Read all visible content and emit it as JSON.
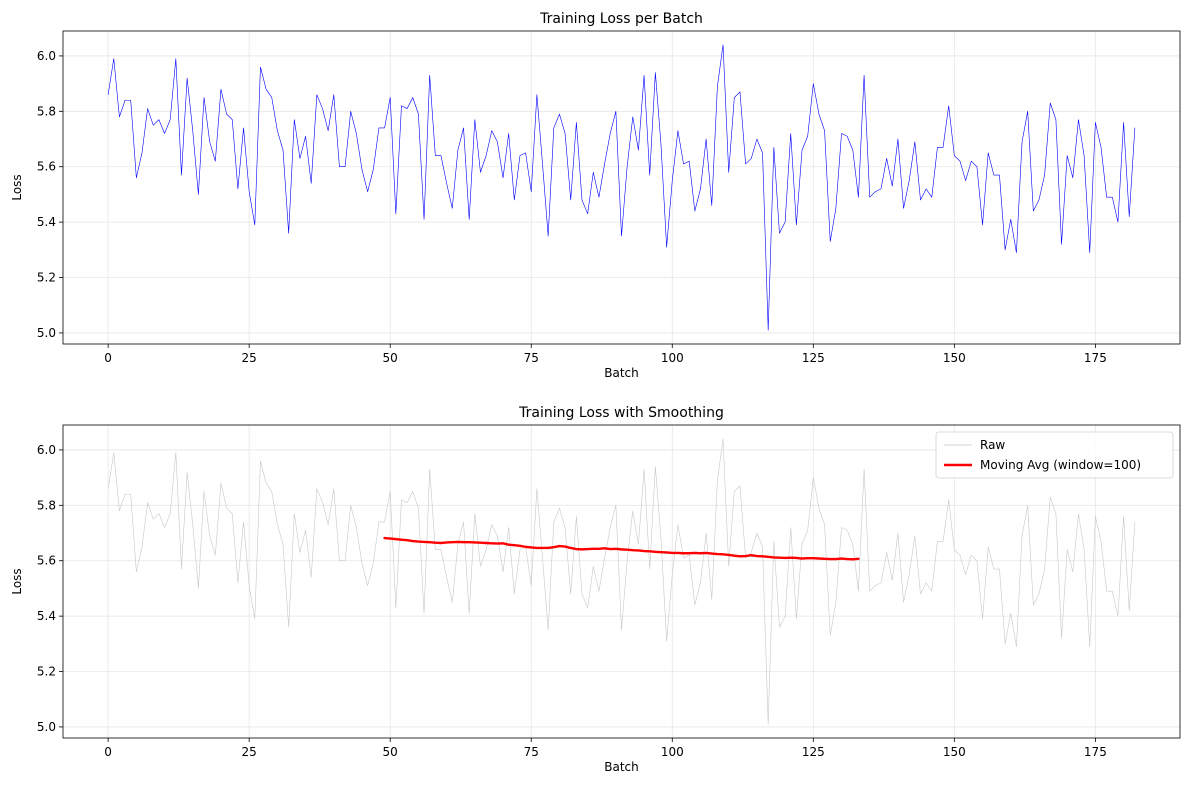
{
  "colors": {
    "raw_top": "#0000ff",
    "raw_bottom": "#c8c8c8",
    "moving_avg": "#ff0000",
    "grid": "#e6e6e6"
  },
  "chart_data": [
    {
      "type": "line",
      "title": "Training Loss per Batch",
      "xlabel": "Batch",
      "ylabel": "Loss",
      "xlim": [
        -8,
        190
      ],
      "ylim": [
        4.96,
        6.09
      ],
      "xticks": [
        0,
        25,
        50,
        75,
        100,
        125,
        150,
        175
      ],
      "yticks": [
        5.0,
        5.2,
        5.4,
        5.6,
        5.8,
        6.0
      ],
      "grid": true,
      "series": [
        {
          "color": "#0000ff",
          "x_start": 0,
          "x_step": 1,
          "values": [
            5.86,
            5.99,
            5.78,
            5.84,
            5.84,
            5.56,
            5.65,
            5.81,
            5.75,
            5.77,
            5.72,
            5.77,
            5.99,
            5.57,
            5.92,
            5.73,
            5.5,
            5.85,
            5.69,
            5.62,
            5.88,
            5.79,
            5.77,
            5.52,
            5.74,
            5.51,
            5.39,
            5.96,
            5.88,
            5.85,
            5.73,
            5.66,
            5.36,
            5.77,
            5.63,
            5.71,
            5.54,
            5.86,
            5.81,
            5.73,
            5.86,
            5.6,
            5.6,
            5.8,
            5.72,
            5.59,
            5.51,
            5.59,
            5.74,
            5.74,
            5.85,
            5.43,
            5.82,
            5.81,
            5.85,
            5.79,
            5.41,
            5.93,
            5.64,
            5.64,
            5.54,
            5.45,
            5.66,
            5.74,
            5.41,
            5.77,
            5.58,
            5.64,
            5.73,
            5.69,
            5.56,
            5.72,
            5.48,
            5.64,
            5.65,
            5.51,
            5.86,
            5.61,
            5.35,
            5.74,
            5.79,
            5.72,
            5.48,
            5.76,
            5.48,
            5.43,
            5.58,
            5.49,
            5.61,
            5.72,
            5.8,
            5.35,
            5.6,
            5.78,
            5.66,
            5.93,
            5.57,
            5.94,
            5.68,
            5.31,
            5.55,
            5.73,
            5.61,
            5.62,
            5.44,
            5.52,
            5.7,
            5.46,
            5.89,
            6.04,
            5.58,
            5.85,
            5.87,
            5.61,
            5.63,
            5.7,
            5.65,
            5.01,
            5.67,
            5.36,
            5.4,
            5.72,
            5.39,
            5.66,
            5.71,
            5.9,
            5.79,
            5.73,
            5.33,
            5.45,
            5.72,
            5.71,
            5.66,
            5.49,
            5.93,
            5.49,
            5.51,
            5.52,
            5.63,
            5.53,
            5.7,
            5.45,
            5.55,
            5.69,
            5.48,
            5.52,
            5.49,
            5.67,
            5.67,
            5.82,
            5.64,
            5.62,
            5.55,
            5.62,
            5.6,
            5.39,
            5.65,
            5.57,
            5.57,
            5.3,
            5.41,
            5.29,
            5.69,
            5.8,
            5.44,
            5.48,
            5.57,
            5.83,
            5.77,
            5.32,
            5.64,
            5.56,
            5.77,
            5.64,
            5.29,
            5.76,
            5.67,
            5.49,
            5.49,
            5.4,
            5.76,
            5.42,
            5.74
          ]
        }
      ]
    },
    {
      "type": "line",
      "title": "Training Loss with Smoothing",
      "xlabel": "Batch",
      "ylabel": "Loss",
      "xlim": [
        -8,
        190
      ],
      "ylim": [
        4.96,
        6.09
      ],
      "xticks": [
        0,
        25,
        50,
        75,
        100,
        125,
        150,
        175
      ],
      "yticks": [
        5.0,
        5.2,
        5.4,
        5.6,
        5.8,
        6.0
      ],
      "grid": true,
      "legend": "top-right",
      "series": [
        {
          "name": "Raw",
          "color": "#c8c8c8",
          "x_start": 0,
          "x_step": 1,
          "values": [
            5.86,
            5.99,
            5.78,
            5.84,
            5.84,
            5.56,
            5.65,
            5.81,
            5.75,
            5.77,
            5.72,
            5.77,
            5.99,
            5.57,
            5.92,
            5.73,
            5.5,
            5.85,
            5.69,
            5.62,
            5.88,
            5.79,
            5.77,
            5.52,
            5.74,
            5.51,
            5.39,
            5.96,
            5.88,
            5.85,
            5.73,
            5.66,
            5.36,
            5.77,
            5.63,
            5.71,
            5.54,
            5.86,
            5.81,
            5.73,
            5.86,
            5.6,
            5.6,
            5.8,
            5.72,
            5.59,
            5.51,
            5.59,
            5.74,
            5.74,
            5.85,
            5.43,
            5.82,
            5.81,
            5.85,
            5.79,
            5.41,
            5.93,
            5.64,
            5.64,
            5.54,
            5.45,
            5.66,
            5.74,
            5.41,
            5.77,
            5.58,
            5.64,
            5.73,
            5.69,
            5.56,
            5.72,
            5.48,
            5.64,
            5.65,
            5.51,
            5.86,
            5.61,
            5.35,
            5.74,
            5.79,
            5.72,
            5.48,
            5.76,
            5.48,
            5.43,
            5.58,
            5.49,
            5.61,
            5.72,
            5.8,
            5.35,
            5.6,
            5.78,
            5.66,
            5.93,
            5.57,
            5.94,
            5.68,
            5.31,
            5.55,
            5.73,
            5.61,
            5.62,
            5.44,
            5.52,
            5.7,
            5.46,
            5.89,
            6.04,
            5.58,
            5.85,
            5.87,
            5.61,
            5.63,
            5.7,
            5.65,
            5.01,
            5.67,
            5.36,
            5.4,
            5.72,
            5.39,
            5.66,
            5.71,
            5.9,
            5.79,
            5.73,
            5.33,
            5.45,
            5.72,
            5.71,
            5.66,
            5.49,
            5.93,
            5.49,
            5.51,
            5.52,
            5.63,
            5.53,
            5.7,
            5.45,
            5.55,
            5.69,
            5.48,
            5.52,
            5.49,
            5.67,
            5.67,
            5.82,
            5.64,
            5.62,
            5.55,
            5.62,
            5.6,
            5.39,
            5.65,
            5.57,
            5.57,
            5.3,
            5.41,
            5.29,
            5.69,
            5.8,
            5.44,
            5.48,
            5.57,
            5.83,
            5.77,
            5.32,
            5.64,
            5.56,
            5.77,
            5.64,
            5.29,
            5.76,
            5.67,
            5.49,
            5.49,
            5.4,
            5.76,
            5.42,
            5.74
          ]
        },
        {
          "name": "Moving Avg (window=100)",
          "color": "#ff0000",
          "x_start": 49,
          "x_step": 1,
          "values": [
            5.682,
            5.68,
            5.678,
            5.676,
            5.674,
            5.671,
            5.669,
            5.668,
            5.667,
            5.665,
            5.664,
            5.666,
            5.667,
            5.668,
            5.667,
            5.667,
            5.666,
            5.665,
            5.664,
            5.663,
            5.662,
            5.663,
            5.658,
            5.656,
            5.654,
            5.65,
            5.648,
            5.646,
            5.646,
            5.646,
            5.649,
            5.653,
            5.651,
            5.646,
            5.642,
            5.641,
            5.642,
            5.643,
            5.643,
            5.645,
            5.642,
            5.643,
            5.641,
            5.64,
            5.638,
            5.637,
            5.635,
            5.634,
            5.632,
            5.631,
            5.63,
            5.628,
            5.628,
            5.627,
            5.627,
            5.628,
            5.627,
            5.628,
            5.626,
            5.624,
            5.623,
            5.621,
            5.618,
            5.616,
            5.617,
            5.62,
            5.617,
            5.616,
            5.614,
            5.612,
            5.611,
            5.61,
            5.611,
            5.61,
            5.608,
            5.609,
            5.609,
            5.608,
            5.607,
            5.606,
            5.606,
            5.608,
            5.606,
            5.605,
            5.607
          ]
        }
      ]
    }
  ]
}
